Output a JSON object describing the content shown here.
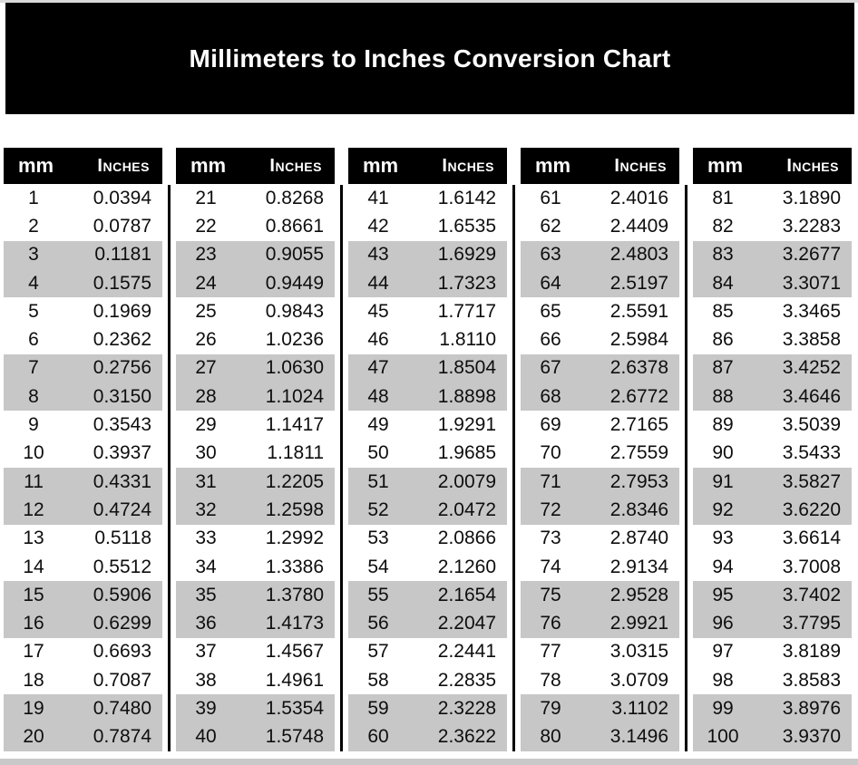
{
  "chart_data": {
    "type": "table",
    "title": "Millimeters to Inches Conversion Chart",
    "column_headers": [
      "mm",
      "Inches"
    ],
    "layout": {
      "group_count": 5,
      "rows_per_group": 20,
      "stripe_pattern": "alternating pairs of rows shaded gray starting at rows 3-4"
    },
    "groups": [
      {
        "rows": [
          [
            "1",
            "0.0394"
          ],
          [
            "2",
            "0.0787"
          ],
          [
            "3",
            "0.1181"
          ],
          [
            "4",
            "0.1575"
          ],
          [
            "5",
            "0.1969"
          ],
          [
            "6",
            "0.2362"
          ],
          [
            "7",
            "0.2756"
          ],
          [
            "8",
            "0.3150"
          ],
          [
            "9",
            "0.3543"
          ],
          [
            "10",
            "0.3937"
          ],
          [
            "11",
            "0.4331"
          ],
          [
            "12",
            "0.4724"
          ],
          [
            "13",
            "0.5118"
          ],
          [
            "14",
            "0.5512"
          ],
          [
            "15",
            "0.5906"
          ],
          [
            "16",
            "0.6299"
          ],
          [
            "17",
            "0.6693"
          ],
          [
            "18",
            "0.7087"
          ],
          [
            "19",
            "0.7480"
          ],
          [
            "20",
            "0.7874"
          ]
        ]
      },
      {
        "rows": [
          [
            "21",
            "0.8268"
          ],
          [
            "22",
            "0.8661"
          ],
          [
            "23",
            "0.9055"
          ],
          [
            "24",
            "0.9449"
          ],
          [
            "25",
            "0.9843"
          ],
          [
            "26",
            "1.0236"
          ],
          [
            "27",
            "1.0630"
          ],
          [
            "28",
            "1.1024"
          ],
          [
            "29",
            "1.1417"
          ],
          [
            "30",
            "1.1811"
          ],
          [
            "31",
            "1.2205"
          ],
          [
            "32",
            "1.2598"
          ],
          [
            "33",
            "1.2992"
          ],
          [
            "34",
            "1.3386"
          ],
          [
            "35",
            "1.3780"
          ],
          [
            "36",
            "1.4173"
          ],
          [
            "37",
            "1.4567"
          ],
          [
            "38",
            "1.4961"
          ],
          [
            "39",
            "1.5354"
          ],
          [
            "40",
            "1.5748"
          ]
        ]
      },
      {
        "rows": [
          [
            "41",
            "1.6142"
          ],
          [
            "42",
            "1.6535"
          ],
          [
            "43",
            "1.6929"
          ],
          [
            "44",
            "1.7323"
          ],
          [
            "45",
            "1.7717"
          ],
          [
            "46",
            "1.8110"
          ],
          [
            "47",
            "1.8504"
          ],
          [
            "48",
            "1.8898"
          ],
          [
            "49",
            "1.9291"
          ],
          [
            "50",
            "1.9685"
          ],
          [
            "51",
            "2.0079"
          ],
          [
            "52",
            "2.0472"
          ],
          [
            "53",
            "2.0866"
          ],
          [
            "54",
            "2.1260"
          ],
          [
            "55",
            "2.1654"
          ],
          [
            "56",
            "2.2047"
          ],
          [
            "57",
            "2.2441"
          ],
          [
            "58",
            "2.2835"
          ],
          [
            "59",
            "2.3228"
          ],
          [
            "60",
            "2.3622"
          ]
        ]
      },
      {
        "rows": [
          [
            "61",
            "2.4016"
          ],
          [
            "62",
            "2.4409"
          ],
          [
            "63",
            "2.4803"
          ],
          [
            "64",
            "2.5197"
          ],
          [
            "65",
            "2.5591"
          ],
          [
            "66",
            "2.5984"
          ],
          [
            "67",
            "2.6378"
          ],
          [
            "68",
            "2.6772"
          ],
          [
            "69",
            "2.7165"
          ],
          [
            "70",
            "2.7559"
          ],
          [
            "71",
            "2.7953"
          ],
          [
            "72",
            "2.8346"
          ],
          [
            "73",
            "2.8740"
          ],
          [
            "74",
            "2.9134"
          ],
          [
            "75",
            "2.9528"
          ],
          [
            "76",
            "2.9921"
          ],
          [
            "77",
            "3.0315"
          ],
          [
            "78",
            "3.0709"
          ],
          [
            "79",
            "3.1102"
          ],
          [
            "80",
            "3.1496"
          ]
        ]
      },
      {
        "rows": [
          [
            "81",
            "3.1890"
          ],
          [
            "82",
            "3.2283"
          ],
          [
            "83",
            "3.2677"
          ],
          [
            "84",
            "3.3071"
          ],
          [
            "85",
            "3.3465"
          ],
          [
            "86",
            "3.3858"
          ],
          [
            "87",
            "3.4252"
          ],
          [
            "88",
            "3.4646"
          ],
          [
            "89",
            "3.5039"
          ],
          [
            "90",
            "3.5433"
          ],
          [
            "91",
            "3.5827"
          ],
          [
            "92",
            "3.6220"
          ],
          [
            "93",
            "3.6614"
          ],
          [
            "94",
            "3.7008"
          ],
          [
            "95",
            "3.7402"
          ],
          [
            "96",
            "3.7795"
          ],
          [
            "97",
            "3.8189"
          ],
          [
            "98",
            "3.8583"
          ],
          [
            "99",
            "3.8976"
          ],
          [
            "100",
            "3.9370"
          ]
        ]
      }
    ]
  },
  "colors": {
    "header_bg": "#000000",
    "header_text": "#ffffff",
    "stripe": "#c7c7c7",
    "background": "#ffffff"
  }
}
